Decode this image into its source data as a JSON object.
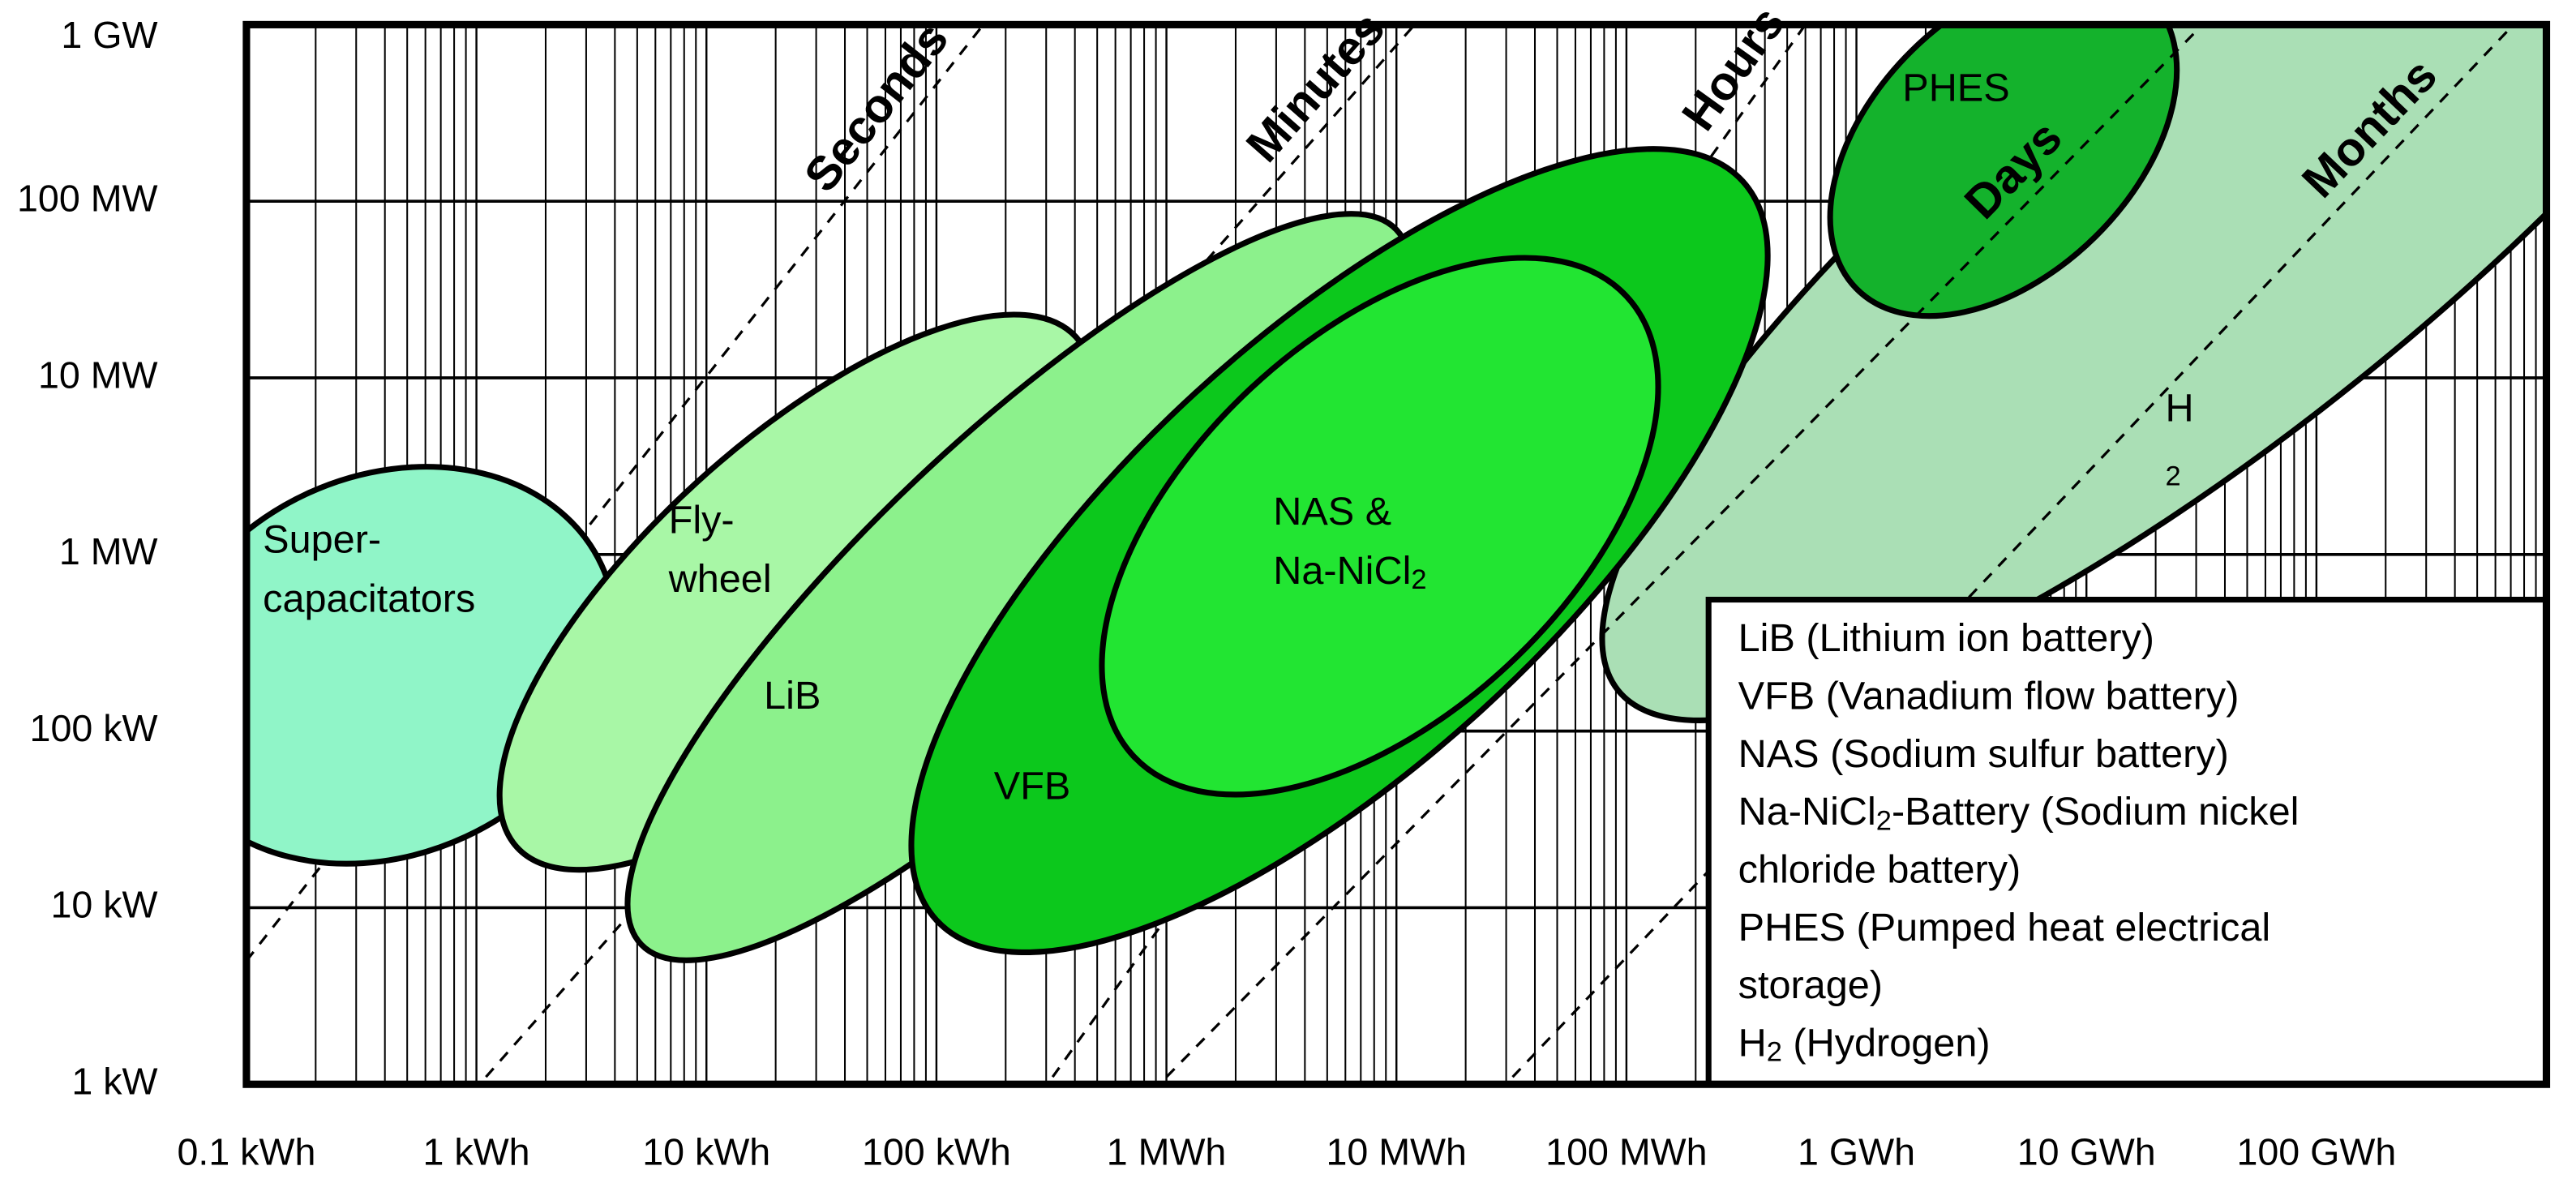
{
  "chart_data": {
    "type": "region",
    "log_x": true,
    "log_y": true,
    "grid": true,
    "minor_grid": true,
    "xlim": [
      0.1,
      1000000000
    ],
    "ylim": [
      1,
      1000000
    ],
    "xticks": [
      {
        "value": 0.1,
        "label": "0.1 kWh"
      },
      {
        "value": 1,
        "label": "1 kWh"
      },
      {
        "value": 10,
        "label": "10 kWh"
      },
      {
        "value": 100,
        "label": "100 kWh"
      },
      {
        "value": 1000,
        "label": "1 MWh"
      },
      {
        "value": 10000,
        "label": "10 MWh"
      },
      {
        "value": 100000,
        "label": "100 MWh"
      },
      {
        "value": 1000000,
        "label": "1 GWh"
      },
      {
        "value": 10000000,
        "label": "10 GWh"
      },
      {
        "value": 100000000,
        "label": "100 GWh"
      }
    ],
    "yticks": [
      {
        "value": 1,
        "label": "1 kW"
      },
      {
        "value": 10,
        "label": "10 kW"
      },
      {
        "value": 100,
        "label": "100 kW"
      },
      {
        "value": 1000,
        "label": "1 MW"
      },
      {
        "value": 10000,
        "label": "10 MW"
      },
      {
        "value": 100000,
        "label": "100 MW"
      },
      {
        "value": 1000000,
        "label": "1 GW"
      }
    ],
    "regions": [
      {
        "label": [
          [
            "H"
          ],
          [
            {
              "sub": "2"
            }
          ]
        ],
        "color": "#aadfb5",
        "major_axis": [
          [
            92000,
            170
          ],
          [
            16000000000,
            53000000
          ]
        ],
        "minor_decades": 1.26
      },
      {
        "label": [
          [
            "PHES"
          ]
        ],
        "color": "#14b22c",
        "major_axis": [
          [
            1000000,
            32000
          ],
          [
            19000000,
            1400000
          ]
        ],
        "minor_decades": 0.74
      },
      {
        "label": [
          [
            "Super-"
          ],
          [
            "capacitators"
          ]
        ],
        "color": "#90f5c8",
        "major_axis": [
          [
            0.047,
            64
          ],
          [
            3.5,
            870
          ]
        ],
        "minor_decades": 1.07
      },
      {
        "label": [
          [
            "Fly-"
          ],
          [
            "wheel"
          ]
        ],
        "color": "#a8f7a6",
        "major_axis": [
          [
            1.5,
            22
          ],
          [
            405,
            17000
          ]
        ],
        "minor_decades": 0.84
      },
      {
        "label": [
          [
            "LiB"
          ]
        ],
        "color": "#8cf18c",
        "major_axis": [
          [
            5.2,
            6.2
          ],
          [
            10000,
            69000
          ]
        ],
        "minor_decades": 0.84
      },
      {
        "label": [
          [
            "VFB"
          ]
        ],
        "color": "#0cc81c",
        "major_axis": [
          [
            100,
            8.5
          ],
          [
            320000,
            130000
          ]
        ],
        "minor_decades": 1.21
      },
      {
        "label": [
          [
            "NAS &"
          ],
          [
            "Na-NiCl",
            {
              "sub": "2"
            }
          ]
        ],
        "color": "#22e532",
        "major_axis": [
          [
            720,
            72
          ],
          [
            100000,
            29000
          ]
        ],
        "minor_decades": 1.07
      }
    ],
    "duration_lines": [
      {
        "label": "Seconds",
        "points": [
          [
            0.1,
            5
          ],
          [
            160,
            1000000
          ]
        ]
      },
      {
        "label": "Minutes",
        "points": [
          [
            1.1,
            1.1
          ],
          [
            12000,
            1000000
          ]
        ]
      },
      {
        "label": "Hours",
        "points": [
          [
            320,
            1.1
          ],
          [
            600000,
            1000000
          ]
        ]
      },
      {
        "label": "Days",
        "points": [
          [
            1000,
            1.1
          ],
          [
            32000000,
            1000000
          ]
        ]
      },
      {
        "label": "Months",
        "points": [
          [
            32000,
            1.1
          ],
          [
            720000000,
            1000000
          ]
        ]
      }
    ],
    "legend": {
      "position": "lower right",
      "lines": [
        [
          "LiB (Lithium ion battery)"
        ],
        [
          "VFB (Vanadium flow battery)"
        ],
        [
          "NAS (Sodium sulfur battery)"
        ],
        [
          "Na-NiCl",
          {
            "sub": "2"
          },
          "-Battery (Sodium nickel"
        ],
        [
          "chloride battery)"
        ],
        [
          "PHES (Pumped heat electrical"
        ],
        [
          "storage)"
        ],
        [
          "H",
          {
            "sub": "2"
          },
          " (Hydrogen)"
        ]
      ]
    }
  }
}
